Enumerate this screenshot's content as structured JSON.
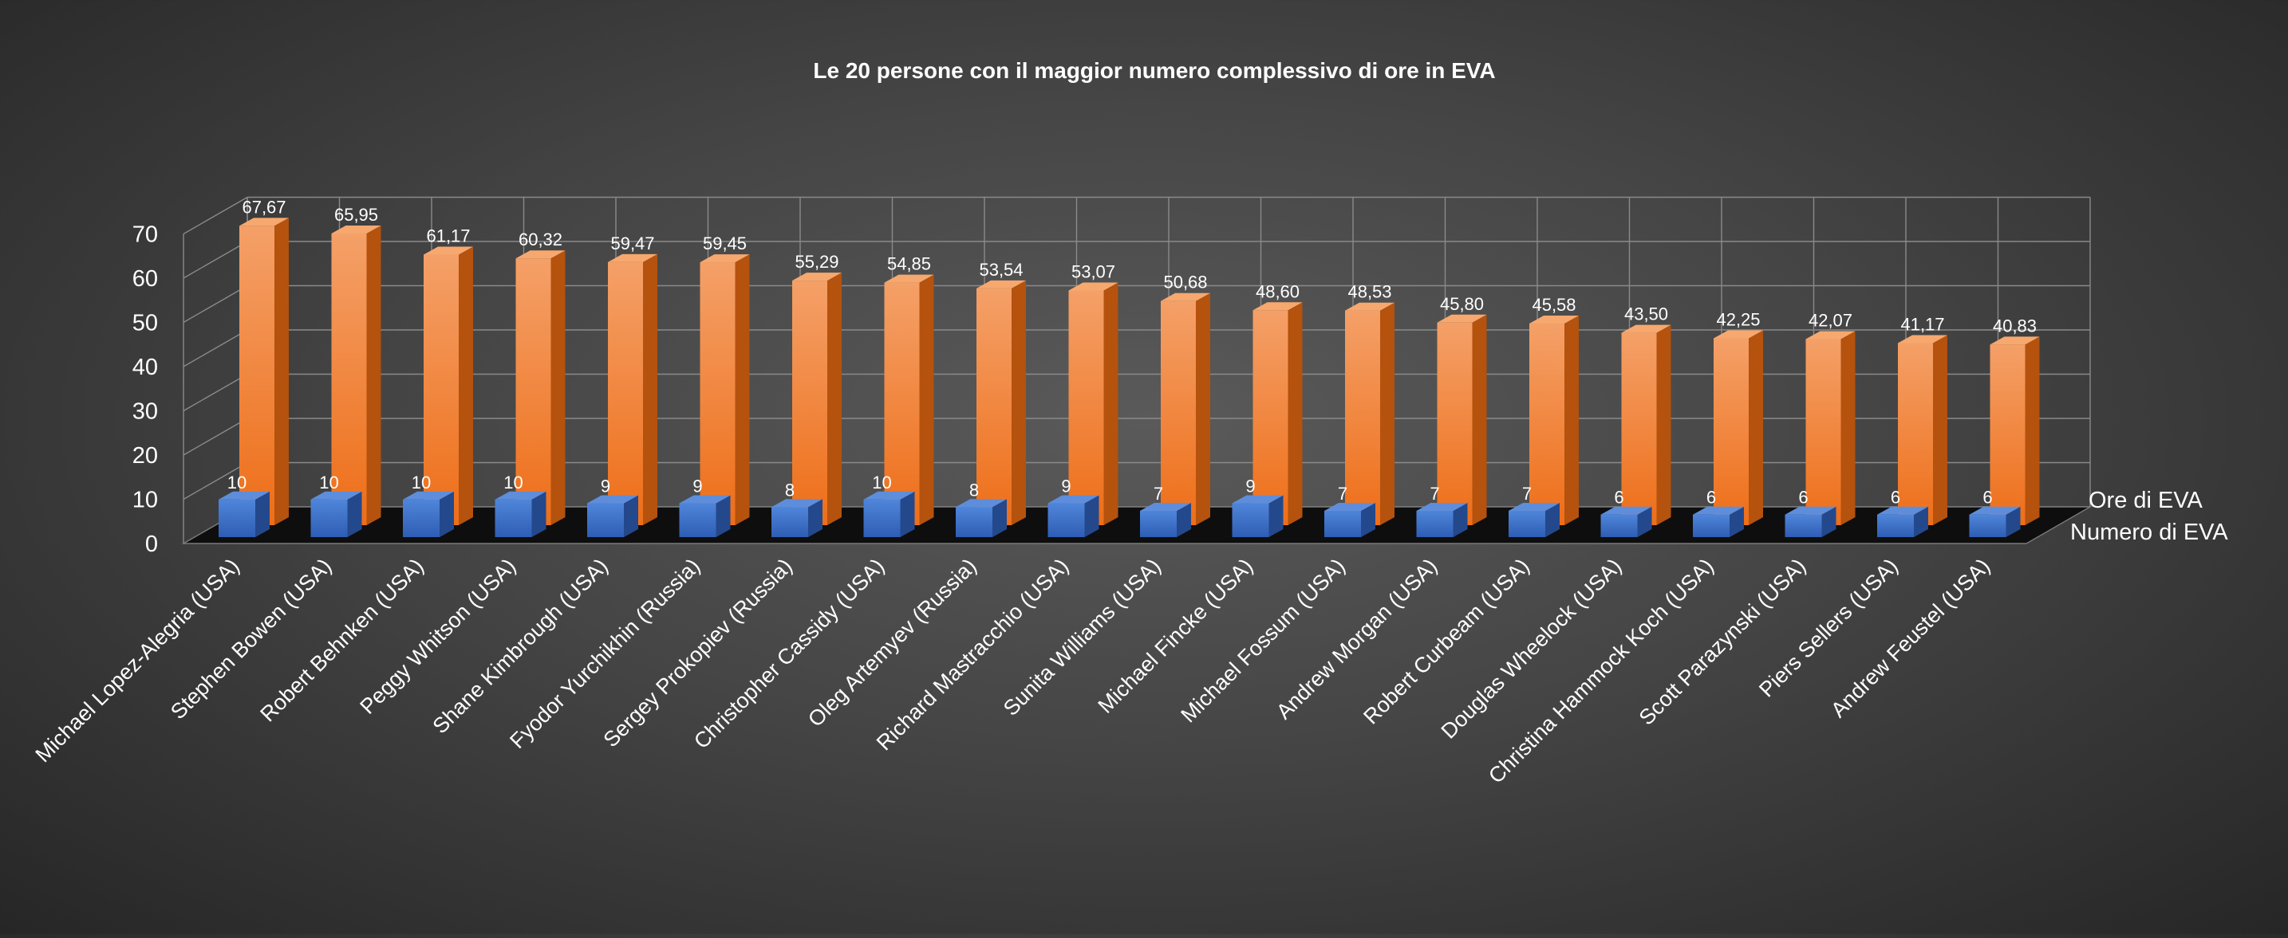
{
  "chart_data": {
    "type": "bar",
    "title": "Le 20 persone con il maggior numero complessivo di ore in EVA",
    "xlabel": "",
    "ylabel": "",
    "ylim": [
      0,
      70
    ],
    "yticks": [
      "0",
      "10",
      "20",
      "30",
      "40",
      "50",
      "60",
      "70"
    ],
    "grid": true,
    "legend_placement": "right",
    "categories": [
      "Michael Lopez-Alegria (USA)",
      "Stephen Bowen (USA)",
      "Robert Behnken (USA)",
      "Peggy Whitson (USA)",
      "Shane Kimbrough  (USA)",
      "Fyodor Yurchikhin (Russia)",
      "Sergey Prokopiev (Russia)",
      "Christopher Cassidy (USA)",
      "Oleg Artemyev (Russia)",
      "Richard Mastracchio (USA)",
      "Sunita Williams (USA)",
      "Michael Fincke (USA)",
      "Michael Fossum (USA)",
      "Andrew Morgan (USA)",
      "Robert Curbeam (USA)",
      "Douglas Wheelock  (USA)",
      "Christina Hammock Koch (USA)",
      "Scott Parazynski (USA)",
      "Piers Sellers (USA)",
      "Andrew Feustel (USA)"
    ],
    "series": [
      {
        "name": "Ore di EVA",
        "color": "#ED7D31",
        "values": [
          67.67,
          65.95,
          61.17,
          60.32,
          59.47,
          59.45,
          55.29,
          54.85,
          53.54,
          53.07,
          50.68,
          48.6,
          48.53,
          45.8,
          45.58,
          43.5,
          42.25,
          42.07,
          41.17,
          40.83
        ],
        "labels": [
          "67,67",
          "65,95",
          "61,17",
          "60,32",
          "59,47",
          "59,45",
          "55,29",
          "54,85",
          "53,54",
          "53,07",
          "50,68",
          "48,60",
          "48,53",
          "45,80",
          "45,58",
          "43,50",
          "42,25",
          "42,07",
          "41,17",
          "40,83"
        ]
      },
      {
        "name": "Numero di EVA",
        "color": "#4472C4",
        "values": [
          10,
          10,
          10,
          10,
          9,
          9,
          8,
          10,
          8,
          9,
          7,
          9,
          7,
          7,
          7,
          6,
          6,
          6,
          6,
          6
        ],
        "labels": [
          "10",
          "10",
          "10",
          "10",
          "9",
          "9",
          "8",
          "10",
          "8",
          "9",
          "7",
          "9",
          "7",
          "7",
          "7",
          "6",
          "6",
          "6",
          "6",
          "6"
        ]
      }
    ]
  }
}
